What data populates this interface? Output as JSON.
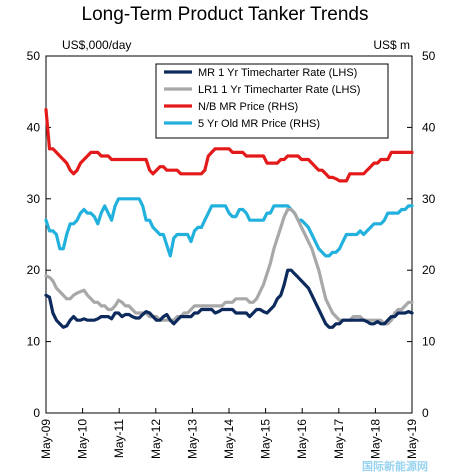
{
  "chart_data": {
    "type": "line",
    "title": "Long-Term Product Tanker Trends",
    "left_axis_unit": "US$,000/day",
    "right_axis_unit": "US$ m",
    "ylim": [
      0,
      50
    ],
    "y_ticks": [
      0,
      10,
      20,
      30,
      40,
      50
    ],
    "x_ticks": [
      "May-09",
      "May-10",
      "May-11",
      "May-12",
      "May-13",
      "May-14",
      "May-15",
      "May-16",
      "May-17",
      "May-18",
      "May-19"
    ],
    "legend_position": "top-right",
    "x_start": "2009-05",
    "x_end": "2019-05",
    "grid": false,
    "series": [
      {
        "name": "MR 1 Yr Timecharter Rate (LHS)",
        "axis": "left",
        "color": "#0d2a5c",
        "values": [
          16.5,
          16.2,
          14.0,
          13.0,
          12.5,
          12.0,
          12.2,
          13.0,
          13.5,
          13.0,
          13.0,
          13.2,
          13.0,
          13.0,
          13.0,
          13.2,
          13.5,
          13.5,
          13.5,
          13.2,
          14.0,
          14.0,
          13.5,
          13.8,
          13.8,
          13.5,
          13.3,
          13.3,
          13.8,
          14.2,
          14.0,
          13.5,
          13.0,
          13.0,
          13.5,
          13.8,
          13.0,
          12.5,
          13.0,
          13.5,
          13.5,
          13.5,
          13.5,
          14.0,
          14.0,
          14.5,
          14.5,
          14.5,
          14.5,
          14.0,
          14.2,
          14.5,
          14.5,
          14.5,
          14.5,
          14.0,
          14.0,
          14.0,
          14.0,
          13.5,
          14.0,
          14.5,
          14.5,
          14.2,
          14.0,
          14.5,
          15.0,
          16.0,
          16.5,
          18.0,
          20.0,
          20.0,
          19.5,
          19.0,
          18.5,
          18.0,
          17.5,
          16.5,
          15.5,
          14.5,
          13.5,
          12.5,
          12.0,
          12.0,
          12.5,
          12.5,
          13.0,
          13.0,
          13.0,
          13.0,
          13.0,
          13.0,
          13.0,
          12.8,
          12.5,
          12.5,
          12.8,
          12.5,
          12.5,
          13.0,
          13.5,
          13.5,
          14.0,
          14.0,
          14.0,
          14.2,
          14.0
        ]
      },
      {
        "name": "LR1 1 Yr Timecharter Rate (LHS)",
        "axis": "left",
        "color": "#a8a8a8",
        "values": [
          19.2,
          19.0,
          18.5,
          17.5,
          17.0,
          16.5,
          16.0,
          16.0,
          16.5,
          16.8,
          17.0,
          17.2,
          16.5,
          16.0,
          15.5,
          15.5,
          15.0,
          15.0,
          14.5,
          14.5,
          15.0,
          15.8,
          15.5,
          15.0,
          15.0,
          14.5,
          14.0,
          14.0,
          14.0,
          14.0,
          13.5,
          13.5,
          13.5,
          13.0,
          13.0,
          13.0,
          13.0,
          13.0,
          13.5,
          13.5,
          14.0,
          14.0,
          14.5,
          15.0,
          15.0,
          15.0,
          15.0,
          15.0,
          15.0,
          15.0,
          15.0,
          15.0,
          15.5,
          15.5,
          15.5,
          16.0,
          16.0,
          16.0,
          16.0,
          15.5,
          15.5,
          16.0,
          17.0,
          18.0,
          19.5,
          21.0,
          23.0,
          24.5,
          26.0,
          27.5,
          28.5,
          28.5,
          28.0,
          27.0,
          26.0,
          25.0,
          24.0,
          23.0,
          21.5,
          20.0,
          18.0,
          16.0,
          15.0,
          14.0,
          13.5,
          13.0,
          13.0,
          13.0,
          13.0,
          13.5,
          13.5,
          13.5,
          13.0,
          13.0,
          13.0,
          13.0,
          13.0,
          13.0,
          12.5,
          12.5,
          13.0,
          14.0,
          14.5,
          14.5,
          15.0,
          15.5,
          15.5
        ]
      },
      {
        "name": "N/B MR Price (RHS)",
        "axis": "right",
        "color": "#e41a1a",
        "values": [
          42.5,
          37.0,
          37.0,
          36.5,
          36.0,
          35.5,
          35.0,
          34.0,
          33.5,
          34.0,
          35.0,
          35.5,
          36.0,
          36.5,
          36.5,
          36.5,
          36.0,
          36.0,
          36.0,
          35.5,
          35.5,
          35.5,
          35.5,
          35.5,
          35.5,
          35.5,
          35.5,
          35.5,
          35.5,
          35.5,
          34.0,
          33.5,
          34.0,
          34.5,
          34.5,
          34.0,
          34.0,
          34.0,
          34.0,
          33.5,
          33.5,
          33.5,
          33.5,
          33.5,
          33.5,
          33.5,
          34.0,
          36.0,
          36.5,
          37.0,
          37.0,
          37.0,
          37.0,
          37.0,
          36.5,
          36.5,
          36.5,
          36.5,
          36.0,
          36.0,
          36.0,
          36.0,
          36.0,
          36.0,
          35.0,
          35.0,
          35.0,
          35.0,
          35.5,
          35.5,
          36.0,
          36.0,
          36.0,
          36.0,
          35.5,
          35.5,
          35.5,
          35.0,
          34.5,
          34.0,
          34.0,
          33.5,
          33.0,
          33.0,
          32.8,
          32.5,
          32.5,
          32.5,
          33.5,
          33.5,
          33.5,
          33.5,
          33.5,
          34.0,
          34.5,
          35.0,
          35.0,
          35.5,
          35.5,
          35.5,
          36.5,
          36.5,
          36.5,
          36.5,
          36.5,
          36.5,
          36.5
        ]
      },
      {
        "name": "5 Yr Old MR Price (RHS)",
        "axis": "right",
        "color": "#22b1dd",
        "values": [
          27.0,
          25.5,
          25.5,
          25.0,
          23.0,
          23.0,
          25.0,
          26.5,
          26.5,
          27.0,
          28.0,
          28.5,
          28.0,
          28.0,
          27.5,
          26.5,
          28.0,
          29.0,
          28.0,
          27.0,
          29.0,
          30.0,
          30.0,
          30.0,
          30.0,
          30.0,
          30.0,
          30.0,
          29.0,
          27.0,
          27.0,
          26.0,
          25.5,
          25.0,
          25.0,
          23.5,
          22.0,
          24.5,
          25.0,
          25.0,
          25.0,
          25.0,
          24.0,
          25.5,
          26.0,
          26.0,
          27.0,
          28.0,
          29.0,
          29.0,
          29.0,
          29.0,
          29.0,
          28.0,
          27.5,
          27.5,
          28.5,
          28.5,
          28.0,
          27.0,
          27.0,
          27.0,
          27.0,
          27.0,
          28.0,
          28.0,
          29.0,
          29.0,
          29.0,
          29.0,
          29.0,
          28.5,
          28.0,
          27.0,
          27.0,
          26.5,
          26.0,
          25.0,
          24.0,
          23.0,
          22.5,
          22.0,
          22.0,
          22.5,
          22.5,
          23.0,
          24.0,
          25.0,
          25.0,
          25.0,
          25.0,
          25.5,
          25.0,
          25.5,
          26.0,
          26.5,
          26.5,
          26.5,
          27.0,
          28.0,
          28.0,
          28.0,
          28.0,
          28.5,
          28.5,
          29.0,
          29.0
        ]
      }
    ]
  },
  "watermark": {
    "text": "国际新能源网"
  },
  "colors": {
    "axis": "#000000",
    "background": "#ffffff"
  }
}
